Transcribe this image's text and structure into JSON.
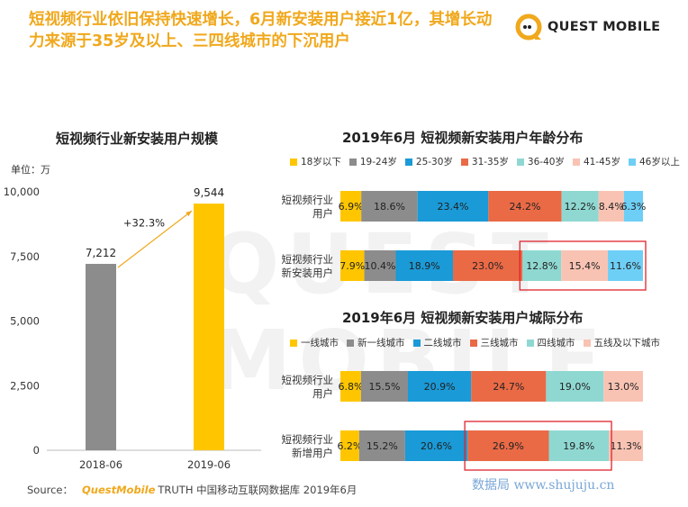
{
  "header": {
    "title": "短视频行业依旧保持快速增长，6月新安装用户接近1亿，其增长动力来源于35岁及以上、三四线城市的下沉用户",
    "logo_text": "QUEST MOBILE"
  },
  "colors": {
    "accent": "#f0a81c",
    "gray_bar": "#8c8c8c",
    "yellow_bar": "#ffc600",
    "highlight_box": "#e0222d"
  },
  "bg_watermark": "QUEST MOBILE",
  "source": {
    "label": "Source：",
    "brand": "QuestMobile",
    "text": "TRUTH 中国移动互联网数据库 2019年6月"
  },
  "watermark_text": "数据局 www.shujuju.cn",
  "unit_label": "单位：万",
  "chart_data": [
    {
      "type": "bar",
      "title": "短视频行业新安装用户规模",
      "unit": "万",
      "categories": [
        "2018-06",
        "2019-06"
      ],
      "values": [
        7212,
        9544
      ],
      "value_labels": [
        "7,212",
        "9,544"
      ],
      "ylim": [
        0,
        10000
      ],
      "yticks": [
        0,
        2500,
        5000,
        7500,
        10000
      ],
      "ytick_labels": [
        "0",
        "2,500",
        "5,000",
        "7,500",
        "10,000"
      ],
      "growth_label": "+32.3%"
    },
    {
      "type": "bar",
      "stacked": true,
      "orientation": "horizontal",
      "percent": true,
      "title": "2019年6月 短视频新安装用户年龄分布",
      "categories": [
        "短视频行业用户",
        "短视频行业新安装用户"
      ],
      "category_lines": [
        [
          "短视频行业",
          "用户"
        ],
        [
          "短视频行业",
          "新安装用户"
        ]
      ],
      "series": [
        {
          "name": "18岁以下",
          "color": "#ffc600",
          "values": [
            6.9,
            7.9
          ]
        },
        {
          "name": "19-24岁",
          "color": "#8c8c8c",
          "values": [
            18.6,
            10.4
          ]
        },
        {
          "name": "25-30岁",
          "color": "#1a9ad7",
          "values": [
            23.4,
            18.9
          ]
        },
        {
          "name": "31-35岁",
          "color": "#ea6a46",
          "values": [
            24.2,
            23.0
          ]
        },
        {
          "name": "36-40岁",
          "color": "#8fd8d2",
          "values": [
            12.2,
            12.8
          ]
        },
        {
          "name": "41-45岁",
          "color": "#f9c3b3",
          "values": [
            8.4,
            15.4
          ]
        },
        {
          "name": "46岁以上",
          "color": "#6ecff6",
          "values": [
            6.3,
            11.6
          ]
        }
      ],
      "highlight": {
        "row": 1,
        "from_series": 4,
        "to_series": 6
      }
    },
    {
      "type": "bar",
      "stacked": true,
      "orientation": "horizontal",
      "percent": true,
      "title": "2019年6月 短视频新安装用户城际分布",
      "categories": [
        "短视频行业用户",
        "短视频行业新增用户"
      ],
      "category_lines": [
        [
          "短视频行业",
          "用户"
        ],
        [
          "短视频行业",
          "新增用户"
        ]
      ],
      "series": [
        {
          "name": "一线城市",
          "color": "#ffc600",
          "values": [
            6.8,
            6.2
          ]
        },
        {
          "name": "新一线城市",
          "color": "#8c8c8c",
          "values": [
            15.5,
            15.2
          ]
        },
        {
          "name": "二线城市",
          "color": "#1a9ad7",
          "values": [
            20.9,
            20.6
          ]
        },
        {
          "name": "三线城市",
          "color": "#ea6a46",
          "values": [
            24.7,
            26.9
          ]
        },
        {
          "name": "四线城市",
          "color": "#8fd8d2",
          "values": [
            19.0,
            19.8
          ]
        },
        {
          "name": "五线及以下城市",
          "color": "#f9c3b3",
          "values": [
            13.0,
            11.3
          ]
        }
      ],
      "highlight": {
        "row": 1,
        "from_series": 3,
        "to_series": 4
      }
    }
  ]
}
